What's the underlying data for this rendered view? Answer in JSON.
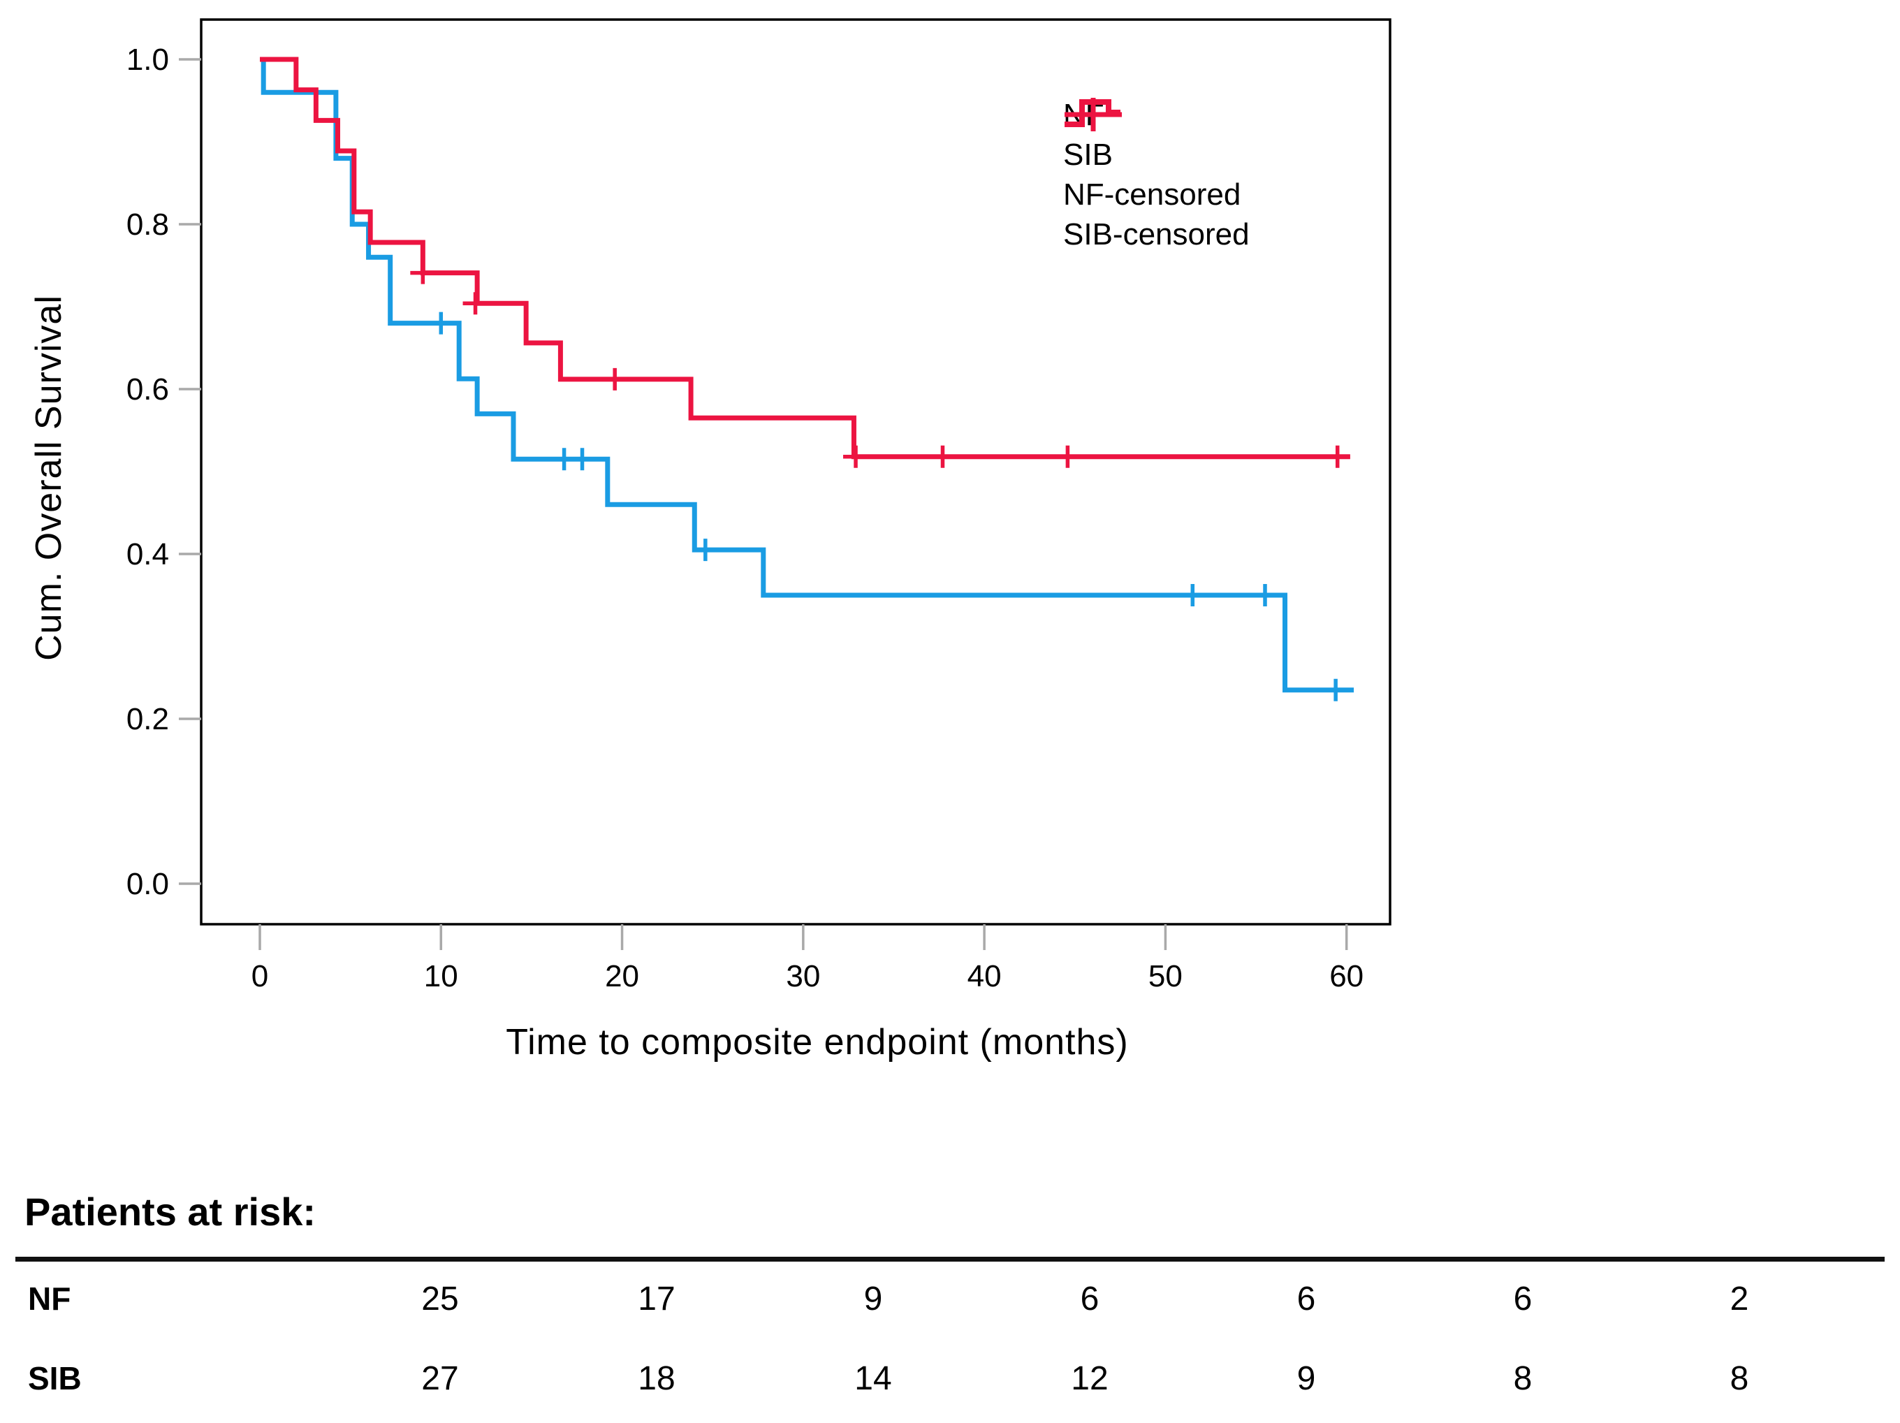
{
  "chart_data": {
    "type": "line",
    "subtype": "kaplan-meier-step",
    "title": "",
    "xlabel": "Time to composite endpoint (months)",
    "ylabel": "Cum. Overall Survival",
    "xlim": [
      0,
      60
    ],
    "ylim": [
      0.0,
      1.0
    ],
    "x_ticks": [
      0,
      10,
      20,
      30,
      40,
      50,
      60
    ],
    "y_ticks": [
      0.0,
      0.2,
      0.4,
      0.6,
      0.8,
      1.0
    ],
    "grid": "off",
    "legend_position": "upper-right-inside",
    "series": [
      {
        "name": "NF",
        "color": "#1A9CE3",
        "steps": [
          [
            0,
            1.0
          ],
          [
            0.2,
            0.96
          ],
          [
            4.2,
            0.88
          ],
          [
            5.1,
            0.8
          ],
          [
            6.0,
            0.76
          ],
          [
            7.2,
            0.68
          ],
          [
            11.0,
            0.6125
          ],
          [
            12.0,
            0.57
          ],
          [
            14.0,
            0.515
          ],
          [
            19.2,
            0.46
          ],
          [
            24.0,
            0.405
          ],
          [
            27.8,
            0.35
          ],
          [
            56.6,
            0.235
          ]
        ],
        "end_time": 60.4,
        "censored": [
          [
            10.0,
            0.68
          ],
          [
            16.8,
            0.515
          ],
          [
            17.8,
            0.515
          ],
          [
            24.6,
            0.405
          ],
          [
            51.5,
            0.35
          ],
          [
            55.5,
            0.35
          ],
          [
            59.4,
            0.235
          ]
        ]
      },
      {
        "name": "SIB",
        "color": "#EC1441",
        "steps": [
          [
            0,
            1.0
          ],
          [
            2.0,
            0.963
          ],
          [
            3.1,
            0.926
          ],
          [
            4.3,
            0.889
          ],
          [
            5.2,
            0.815
          ],
          [
            6.1,
            0.778
          ],
          [
            9.0,
            0.741
          ],
          [
            12.0,
            0.704
          ],
          [
            14.7,
            0.656
          ],
          [
            16.6,
            0.612
          ],
          [
            23.8,
            0.565
          ],
          [
            32.8,
            0.518
          ]
        ],
        "end_time": 60.2,
        "censored": [
          [
            9.0,
            0.741
          ],
          [
            11.9,
            0.704
          ],
          [
            19.6,
            0.612
          ],
          [
            32.9,
            0.518
          ],
          [
            37.7,
            0.518
          ],
          [
            44.6,
            0.518
          ],
          [
            59.5,
            0.518
          ]
        ]
      }
    ],
    "legend": [
      {
        "label": "NF",
        "kind": "step",
        "color": "#1A9CE3"
      },
      {
        "label": "SIB",
        "kind": "step",
        "color": "#EC1441"
      },
      {
        "label": "NF-censored",
        "kind": "cross",
        "color": "#1A9CE3"
      },
      {
        "label": "SIB-censored",
        "kind": "cross",
        "color": "#EC1441"
      }
    ]
  },
  "risk_table": {
    "title": "Patients at risk:",
    "time_points": [
      0,
      10,
      20,
      30,
      40,
      50,
      60
    ],
    "rows": [
      {
        "label": "NF",
        "values": [
          25,
          17,
          9,
          6,
          6,
          6,
          2
        ]
      },
      {
        "label": "SIB",
        "values": [
          27,
          18,
          14,
          12,
          9,
          8,
          8
        ]
      }
    ]
  },
  "style": {
    "axis_color": "#000000",
    "tick_color": "#A9A9A9",
    "nf_color": "#1A9CE3",
    "sib_color": "#EC1441"
  }
}
